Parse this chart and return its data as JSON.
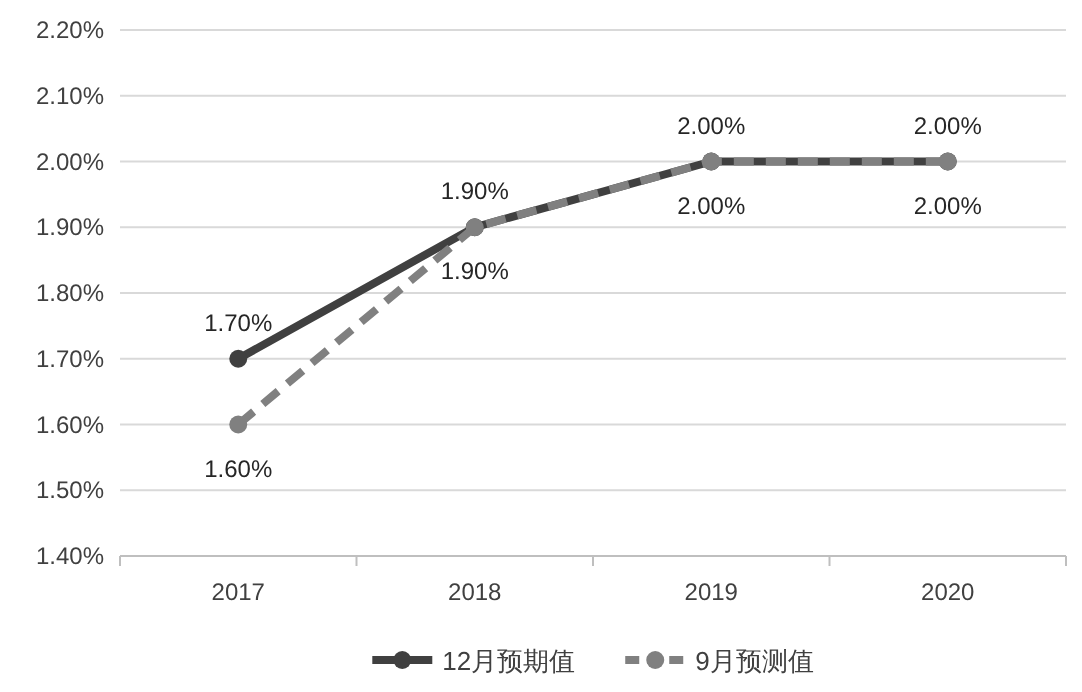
{
  "chart_data": {
    "type": "line",
    "categories": [
      "2017",
      "2018",
      "2019",
      "2020"
    ],
    "series": [
      {
        "name": "12月预期值",
        "color": "#404040",
        "line_style": "solid",
        "marker": "circle",
        "values": [
          1.7,
          1.9,
          2.0,
          2.0
        ],
        "value_labels": [
          "1.70%",
          "1.90%",
          "2.00%",
          "2.00%"
        ]
      },
      {
        "name": "9月预测值",
        "color": "#808080",
        "line_style": "dashed",
        "marker": "circle",
        "values": [
          1.6,
          1.9,
          2.0,
          2.0
        ],
        "value_labels": [
          "1.60%",
          "1.90%",
          "2.00%",
          "2.00%"
        ]
      }
    ],
    "ylim": [
      1.4,
      2.2
    ],
    "yticks": [
      {
        "value": 1.4,
        "label": "1.40%"
      },
      {
        "value": 1.5,
        "label": "1.50%"
      },
      {
        "value": 1.6,
        "label": "1.60%"
      },
      {
        "value": 1.7,
        "label": "1.70%"
      },
      {
        "value": 1.8,
        "label": "1.80%"
      },
      {
        "value": 1.9,
        "label": "1.90%"
      },
      {
        "value": 2.0,
        "label": "2.00%"
      },
      {
        "value": 2.1,
        "label": "2.10%"
      },
      {
        "value": 2.2,
        "label": "2.20%"
      }
    ],
    "grid": "y",
    "legend": "bottom"
  }
}
